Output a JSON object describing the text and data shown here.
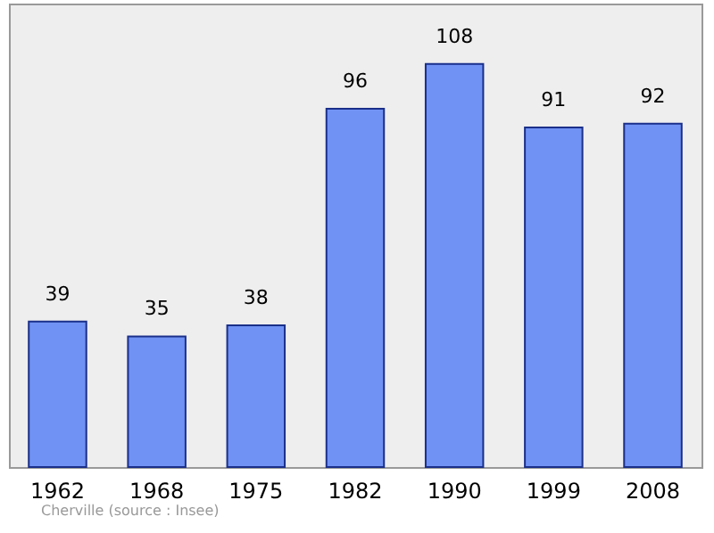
{
  "chart_data": {
    "type": "bar",
    "categories": [
      "1962",
      "1968",
      "1975",
      "1982",
      "1990",
      "1999",
      "2008"
    ],
    "values": [
      39,
      35,
      38,
      96,
      108,
      91,
      92
    ],
    "color": "#7092f4",
    "data_labels": true,
    "relative": false,
    "annotations": [
      "Cherville    (source : Insee)"
    ]
  }
}
